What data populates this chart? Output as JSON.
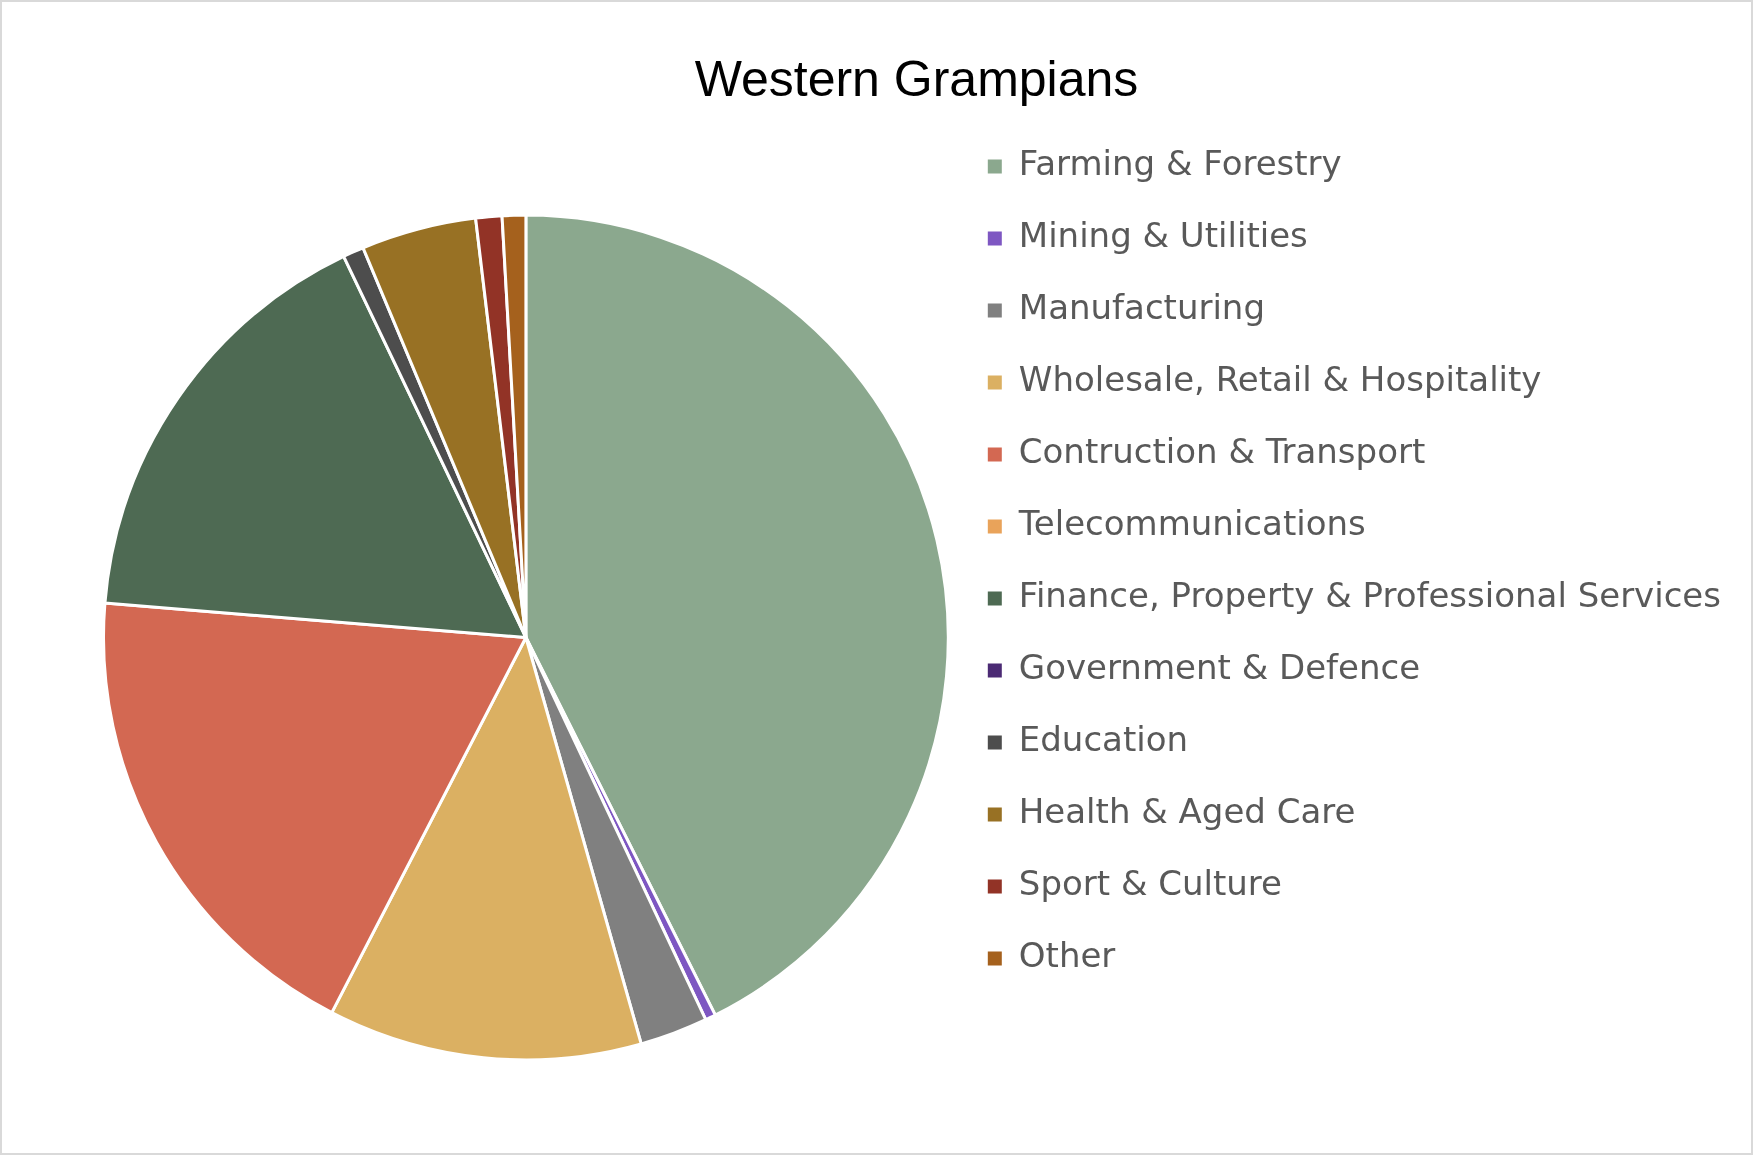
{
  "chart_data": {
    "type": "pie",
    "title": "Western Grampians",
    "categories": [
      "Farming & Forestry",
      "Mining & Utilities",
      "Manufacturing",
      "Wholesale, Retail & Hospitality",
      "Contruction & Transport",
      "Telecommunications",
      "Finance, Property & Professional Services",
      "Government & Defence",
      "Education",
      "Health & Aged Care",
      "Sport & Culture",
      "Other"
    ],
    "values": [
      42.6,
      0.4,
      2.6,
      12.0,
      18.7,
      0,
      16.6,
      0,
      0.8,
      4.4,
      1.0,
      0.9
    ],
    "colors": [
      "#8ba88e",
      "#7e57c2",
      "#808080",
      "#dbb062",
      "#d36852",
      "#e9a35a",
      "#4e6a53",
      "#4b2a74",
      "#4d4d4d",
      "#987124",
      "#923326",
      "#a5611d"
    ],
    "legend": "right"
  }
}
